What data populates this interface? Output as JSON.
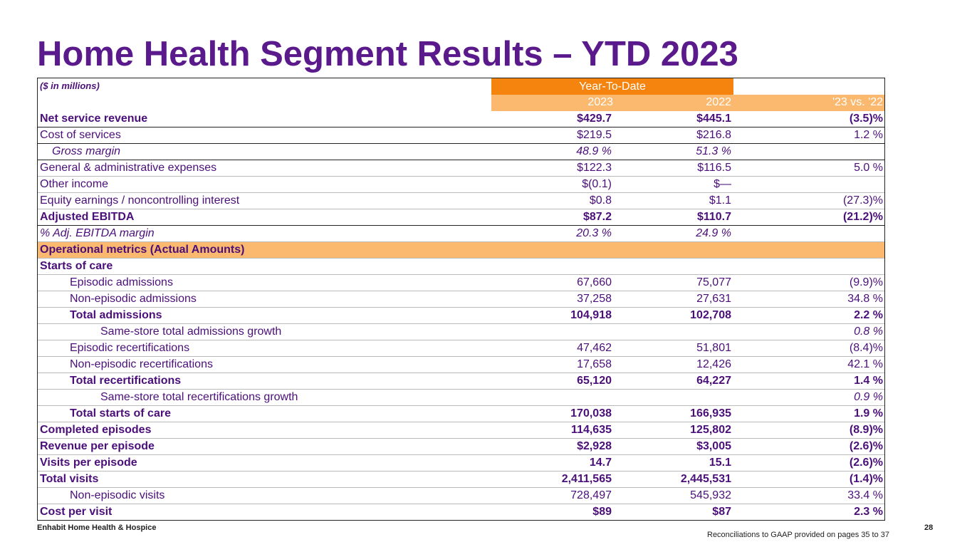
{
  "title": "Home Health Segment Results – YTD 2023",
  "table": {
    "units_label": "($ in millions)",
    "period_header": "Year-To-Date",
    "col_headers": [
      "2023",
      "2022",
      "'23 vs. '22"
    ],
    "rows": [
      {
        "label": "Net service revenue",
        "v2023": "$429.7",
        "v2022": "$445.1",
        "change": "(3.5)%"
      },
      {
        "label": "Cost of services",
        "v2023": "$219.5",
        "v2022": "$216.8",
        "change": "1.2 %"
      },
      {
        "label": "Gross margin",
        "v2023": "48.9 %",
        "v2022": "51.3 %",
        "change": ""
      },
      {
        "label": "General & administrative expenses",
        "v2023": "$122.3",
        "v2022": "$116.5",
        "change": "5.0 %"
      },
      {
        "label": "Other income",
        "v2023": "$(0.1)",
        "v2022": "$—",
        "change": ""
      },
      {
        "label": "Equity earnings / noncontrolling interest",
        "v2023": "$0.8",
        "v2022": "$1.1",
        "change": "(27.3)%"
      },
      {
        "label": "Adjusted EBITDA",
        "v2023": "$87.2",
        "v2022": "$110.7",
        "change": "(21.2)%"
      },
      {
        "label": "%  Adj. EBITDA margin",
        "v2023": "20.3 %",
        "v2022": "24.9 %",
        "change": ""
      },
      {
        "label": "Operational metrics (Actual Amounts)",
        "v2023": "",
        "v2022": "",
        "change": ""
      },
      {
        "label": "Starts of care",
        "v2023": "",
        "v2022": "",
        "change": ""
      },
      {
        "label": "Episodic admissions",
        "v2023": "67,660",
        "v2022": "75,077",
        "change": "(9.9)%"
      },
      {
        "label": "Non-episodic admissions",
        "v2023": "37,258",
        "v2022": "27,631",
        "change": "34.8 %"
      },
      {
        "label": "Total admissions",
        "v2023": "104,918",
        "v2022": "102,708",
        "change": "2.2 %"
      },
      {
        "label": "Same-store total admissions growth",
        "v2023": "",
        "v2022": "",
        "change": "0.8 %"
      },
      {
        "label": "Episodic recertifications",
        "v2023": "47,462",
        "v2022": "51,801",
        "change": "(8.4)%"
      },
      {
        "label": "Non-episodic recertifications",
        "v2023": "17,658",
        "v2022": "12,426",
        "change": "42.1 %"
      },
      {
        "label": "Total recertifications",
        "v2023": "65,120",
        "v2022": "64,227",
        "change": "1.4 %"
      },
      {
        "label": "Same-store total recertifications growth",
        "v2023": "",
        "v2022": "",
        "change": "0.9 %"
      },
      {
        "label": "Total starts of care",
        "v2023": "170,038",
        "v2022": "166,935",
        "change": "1.9 %"
      },
      {
        "label": "Completed episodes",
        "v2023": "114,635",
        "v2022": "125,802",
        "change": "(8.9)%"
      },
      {
        "label": "Revenue per episode",
        "v2023": "$2,928",
        "v2022": "$3,005",
        "change": "(2.6)%"
      },
      {
        "label": "Visits per episode",
        "v2023": "14.7",
        "v2022": "15.1",
        "change": "(2.6)%"
      },
      {
        "label": "Total visits",
        "v2023": "2,411,565",
        "v2022": "2,445,531",
        "change": "(1.4)%"
      },
      {
        "label": "Non-episodic visits",
        "v2023": "728,497",
        "v2022": "545,932",
        "change": "33.4 %"
      },
      {
        "label": "Cost per visit",
        "v2023": "$89",
        "v2022": "$87",
        "change": "2.3 %"
      }
    ]
  },
  "footer": {
    "company": "Enhabit Home Health & Hospice",
    "page_number": "28",
    "footnote": "Reconciliations to GAAP provided on pages 35 to 37"
  },
  "colors": {
    "title": "#5b1a8c",
    "text": "#4b0f7a",
    "header_orange": "#f5840f",
    "header_light_orange": "#fbb86f"
  }
}
